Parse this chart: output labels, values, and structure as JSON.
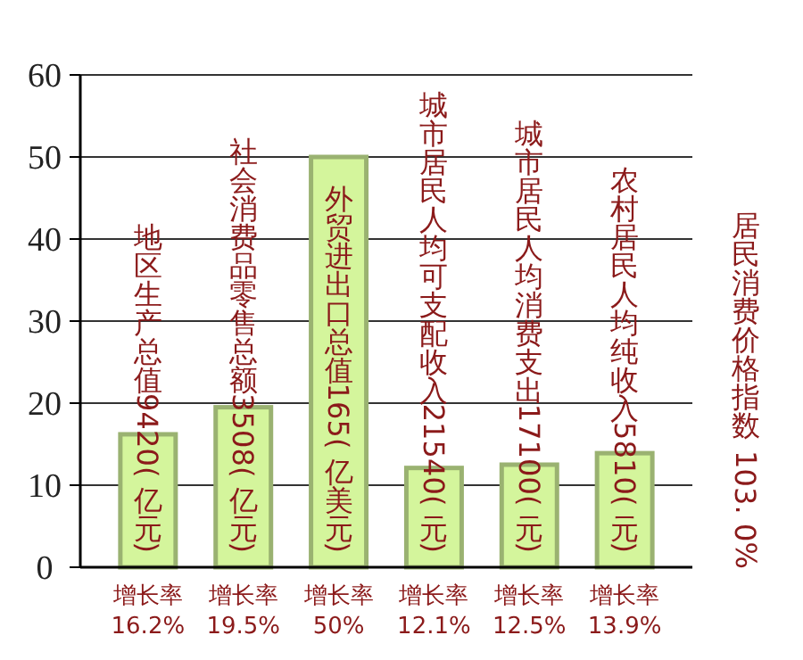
{
  "chart_data": {
    "type": "bar",
    "categories": [
      "增长率\n16.2%",
      "增长率\n19.5%",
      "增长率\n50%",
      "增长率\n12.1%",
      "增长率\n12.5%",
      "增长率\n13.9%"
    ],
    "values": [
      16.2,
      19.5,
      50,
      12.1,
      12.5,
      13.9
    ],
    "color": "#d4f59c",
    "ylim": [
      0,
      60
    ],
    "yticks": [
      0,
      10,
      20,
      30,
      40,
      50,
      60
    ],
    "grid": "y",
    "annotations": [
      "地区生产总值9420(亿元)",
      "社会消费品零售总额3508(亿元)",
      "外贸进出口总值165(亿美元)",
      "城市居民人均可支配收入21540(元)",
      "城市居民人均消费支出17100(元)",
      "农村居民人均纯收入5810(元)",
      "居民消费价格指数 103.0%"
    ]
  }
}
